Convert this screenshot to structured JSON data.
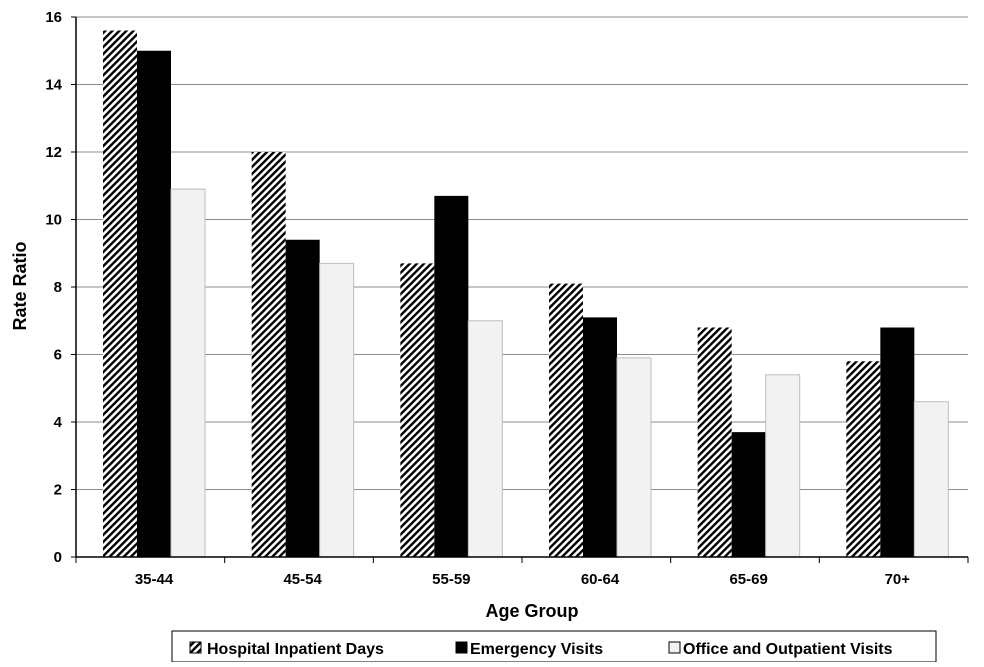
{
  "chart_data": {
    "type": "bar",
    "title": "",
    "xlabel": "Age Group",
    "ylabel": "Rate Ratio",
    "categories": [
      "35-44",
      "45-54",
      "55-59",
      "60-64",
      "65-69",
      "70+"
    ],
    "ylim": [
      0,
      16
    ],
    "yticks": [
      "0",
      "2",
      "4",
      "6",
      "8",
      "10",
      "12",
      "14",
      "16"
    ],
    "grid": true,
    "legend_position": "bottom",
    "series": [
      {
        "name": "Hospital Inpatient Days",
        "values": [
          15.6,
          12.0,
          8.7,
          8.1,
          6.8,
          5.8
        ],
        "fill": "hatched",
        "color": "#000000"
      },
      {
        "name": "Emergency Visits",
        "values": [
          15.0,
          9.4,
          10.7,
          7.1,
          3.7,
          6.8
        ],
        "fill": "solid",
        "color": "#000000"
      },
      {
        "name": "Office and Outpatient Visits",
        "values": [
          10.9,
          8.7,
          7.0,
          5.9,
          5.4,
          4.6
        ],
        "fill": "solid",
        "color": "#f2f2f2"
      }
    ]
  }
}
